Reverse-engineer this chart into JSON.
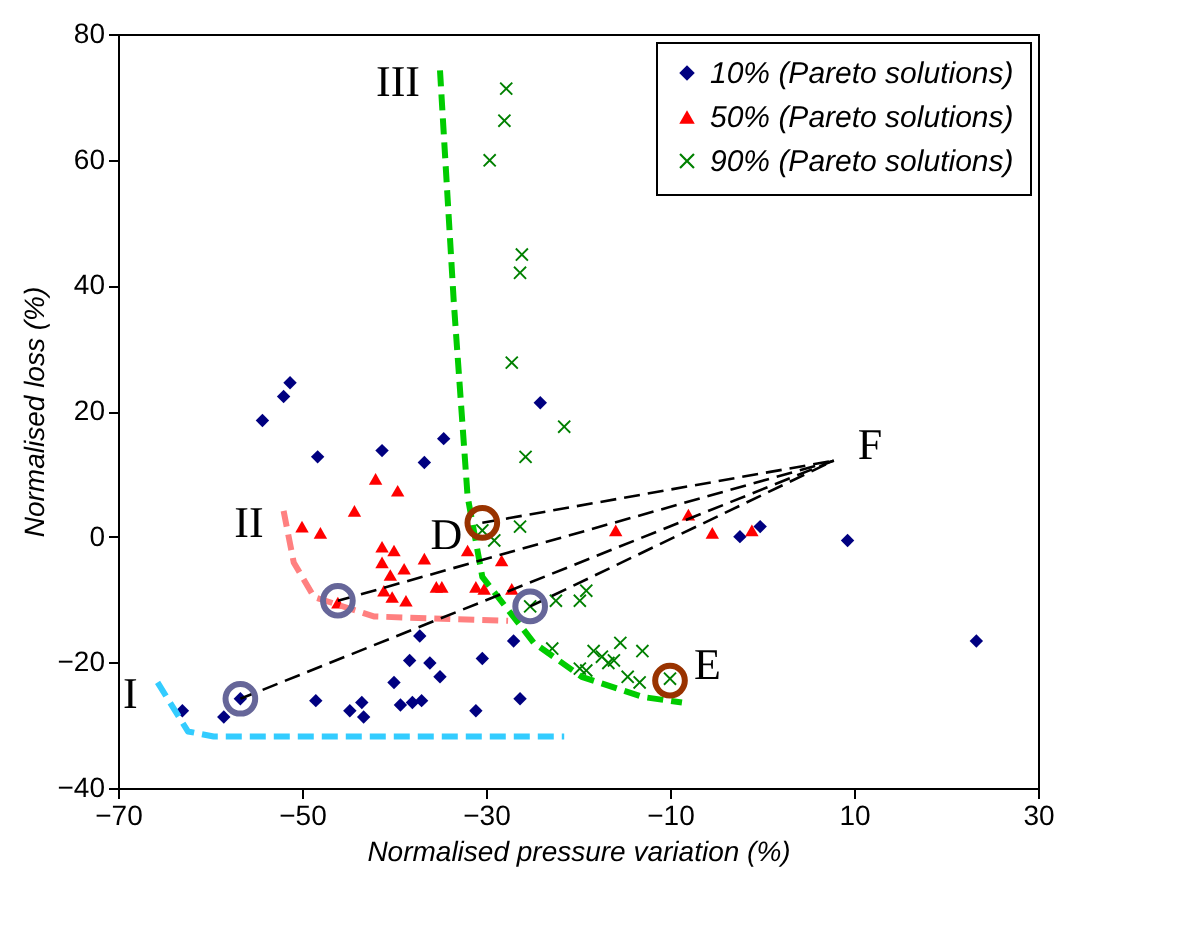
{
  "chart_data": {
    "type": "scatter",
    "xlabel": "Normalised pressure variation (%)",
    "ylabel": "Normalised loss (%)",
    "xlim": [
      -70,
      30
    ],
    "xticks": [
      -70,
      -50,
      -30,
      -10,
      10,
      30
    ],
    "ylim": [
      -40,
      80
    ],
    "yticks": [
      -40,
      -20,
      0,
      20,
      40,
      60,
      80
    ],
    "grid": false,
    "legend": "top right",
    "series": [
      {
        "name": "10% (Pareto solutions)",
        "marker": "diamond",
        "color": "#000080",
        "x": [
          -51.3,
          -52.0,
          -54.3,
          -48.3,
          -41.3,
          -36.7,
          -34.6,
          -24.1,
          -37.2,
          -38.3,
          -36.1,
          -35.0,
          -40.0,
          -56.7,
          -58.5,
          -63.0,
          -48.5,
          -44.8,
          -43.5,
          -43.3,
          -39.3,
          -38.0,
          -37.0,
          -27.0,
          -30.4,
          -26.3,
          -31.1,
          -2.4,
          -0.2,
          9.3,
          23.3
        ],
        "values": [
          24.5,
          22.3,
          18.5,
          12.7,
          13.7,
          11.8,
          15.6,
          21.3,
          -15.8,
          -19.7,
          -20.1,
          -22.3,
          -23.2,
          -25.8,
          -28.7,
          -27.7,
          -26.1,
          -27.7,
          -26.4,
          -28.7,
          -26.8,
          -26.4,
          -26.1,
          -16.6,
          -19.4,
          -25.8,
          -27.7,
          0,
          1.6,
          -0.6,
          -16.6
        ]
      },
      {
        "name": "50% (Pareto solutions)",
        "marker": "triangle",
        "color": "#ff0000",
        "x": [
          -42.0,
          -39.6,
          -44.3,
          -50.0,
          -48.0,
          -41.3,
          -40.0,
          -36.7,
          -41.3,
          -38.9,
          -40.4,
          -41.1,
          -40.2,
          -38.7,
          -46.1,
          -34.8,
          -32.0,
          -28.3,
          -35.4,
          -31.1,
          -30.2,
          -27.2,
          -15.9,
          -8.0,
          -5.4,
          -1.1
        ],
        "values": [
          9.2,
          7.3,
          4.1,
          1.6,
          0.6,
          -1.6,
          -2.2,
          -3.5,
          -4.1,
          -5.1,
          -6.1,
          -8.6,
          -9.6,
          -10.2,
          -10.5,
          -8.0,
          -2.2,
          -3.8,
          -8.0,
          -8.0,
          -8.3,
          -8.3,
          1.0,
          3.5,
          0.6,
          1.0
        ]
      },
      {
        "name": "90% (Pareto solutions)",
        "marker": "cross",
        "color": "#008000",
        "x": [
          -27.8,
          -28.0,
          -29.6,
          -26.1,
          -26.3,
          -27.2,
          -21.5,
          -25.7,
          -30.4,
          -26.3,
          -29.1,
          -25.2,
          -22.4,
          -19.8,
          -19.1,
          -22.8,
          -19.8,
          -17.4,
          -16.7,
          -16.1,
          -15.4,
          -18.3,
          -13.0,
          -14.6,
          -13.3,
          -10.0,
          -19.1
        ],
        "values": [
          71.3,
          66.2,
          59.9,
          44.9,
          42.0,
          27.7,
          17.5,
          12.7,
          1.0,
          1.6,
          -0.6,
          -11.1,
          -10.2,
          -10.2,
          -8.6,
          -17.8,
          -21.0,
          -19.1,
          -20.1,
          -19.7,
          -16.9,
          -18.2,
          -18.2,
          -22.3,
          -23.2,
          -22.6,
          -21.3
        ]
      },
      {
        "type": "line",
        "line_style": "dashed",
        "color": "#33ccff",
        "x": [
          -65.7,
          -62.4,
          -59.6,
          -21.5
        ],
        "values": [
          -23.2,
          -31.0,
          -31.8,
          -31.8
        ]
      },
      {
        "type": "line",
        "line_style": "dashed",
        "color": "#ff8080",
        "x": [
          -52.0,
          -50.9,
          -48.7,
          -42.2,
          -27.6
        ],
        "values": [
          4.1,
          -4.1,
          -9.6,
          -12.7,
          -13.4
        ]
      },
      {
        "type": "line",
        "line_style": "dashed",
        "color": "#00cc00",
        "x": [
          -35.0,
          -33.5,
          -32.0,
          -30.4,
          -24.8,
          -19.6,
          -13.0,
          -8.7
        ],
        "values": [
          74.2,
          37.3,
          6.4,
          -6.4,
          -16.9,
          -22.3,
          -25.5,
          -26.4
        ]
      },
      {
        "type": "line",
        "line_style": "dashed",
        "color": "#000000",
        "x": [
          -56.7,
          7.8
        ],
        "values": [
          -25.8,
          12.1
        ]
      },
      {
        "type": "line",
        "line_style": "dashed",
        "color": "#000000",
        "x": [
          -46.1,
          7.8
        ],
        "values": [
          -10.2,
          12.1
        ]
      },
      {
        "type": "line",
        "line_style": "dashed",
        "color": "#000000",
        "x": [
          -25.2,
          7.8
        ],
        "values": [
          -11.1,
          12.1
        ]
      },
      {
        "type": "line",
        "line_style": "dashed",
        "color": "#000000",
        "x": [
          -30.4,
          7.8
        ],
        "values": [
          2.2,
          12.1
        ]
      },
      {
        "type": "scatter",
        "marker": "circle",
        "color": "#666699",
        "x": [
          -56.7,
          -46.1,
          -25.2
        ],
        "values": [
          -25.8,
          -10.2,
          -11.1
        ]
      },
      {
        "type": "scatter",
        "marker": "circle",
        "color": "#993300",
        "x": [
          -30.4,
          -10.0
        ],
        "values": [
          2.2,
          -22.9
        ]
      }
    ],
    "annotations": [
      {
        "text": "I",
        "x": -65.7,
        "y": -23.2
      },
      {
        "text": "II",
        "x": -52.0,
        "y": 4.1
      },
      {
        "text": "III",
        "x": -35.0,
        "y": 74.2
      },
      {
        "text": "D",
        "x": -30.4,
        "y": 2.2
      },
      {
        "text": "E",
        "x": -10.0,
        "y": -22.9
      },
      {
        "text": "F",
        "x": 7.8,
        "y": 12.1
      }
    ]
  }
}
